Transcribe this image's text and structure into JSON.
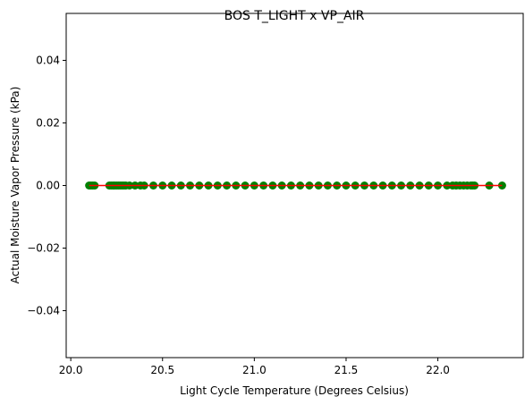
{
  "chart_data": {
    "type": "scatter",
    "title": "BOS T_LIGHT x VP_AIR",
    "xlabel": "Light Cycle Temperature (Degrees Celsius)",
    "ylabel": "Actual Moisture Vapor Pressure (kPa)",
    "xlim": [
      19.975,
      22.465
    ],
    "ylim": [
      -0.055,
      0.055
    ],
    "xticks": [
      20.0,
      20.5,
      21.0,
      21.5,
      22.0
    ],
    "xtick_labels": [
      "20.0",
      "20.5",
      "21.0",
      "21.5",
      "22.0"
    ],
    "yticks": [
      -0.04,
      -0.02,
      0.0,
      0.02,
      0.04
    ],
    "ytick_labels": [
      "−0.04",
      "−0.02",
      "0.00",
      "0.02",
      "0.04"
    ],
    "grid": false,
    "series": [
      {
        "kind": "points",
        "color": "#008000",
        "x": [
          20.1,
          20.11,
          20.12,
          20.13,
          20.21,
          20.22,
          20.23,
          20.24,
          20.25,
          20.26,
          20.27,
          20.28,
          20.29,
          20.3,
          20.32,
          20.35,
          20.38,
          20.4,
          20.45,
          20.5,
          20.55,
          20.6,
          20.65,
          20.7,
          20.75,
          20.8,
          20.85,
          20.9,
          20.95,
          21.0,
          21.05,
          21.1,
          21.15,
          21.2,
          21.25,
          21.3,
          21.35,
          21.4,
          21.45,
          21.5,
          21.55,
          21.6,
          21.65,
          21.7,
          21.75,
          21.8,
          21.85,
          21.9,
          21.95,
          22.0,
          22.05,
          22.08,
          22.1,
          22.12,
          22.14,
          22.16,
          22.18,
          22.19,
          22.2,
          22.28,
          22.35
        ],
        "y": [
          0,
          0,
          0,
          0,
          0,
          0,
          0,
          0,
          0,
          0,
          0,
          0,
          0,
          0,
          0,
          0,
          0,
          0,
          0,
          0,
          0,
          0,
          0,
          0,
          0,
          0,
          0,
          0,
          0,
          0,
          0,
          0,
          0,
          0,
          0,
          0,
          0,
          0,
          0,
          0,
          0,
          0,
          0,
          0,
          0,
          0,
          0,
          0,
          0,
          0,
          0,
          0,
          0,
          0,
          0,
          0,
          0,
          0,
          0,
          0,
          0
        ]
      },
      {
        "kind": "line",
        "color": "#ff0000",
        "x": [
          20.1,
          22.35
        ],
        "y": [
          0,
          0
        ]
      }
    ]
  }
}
